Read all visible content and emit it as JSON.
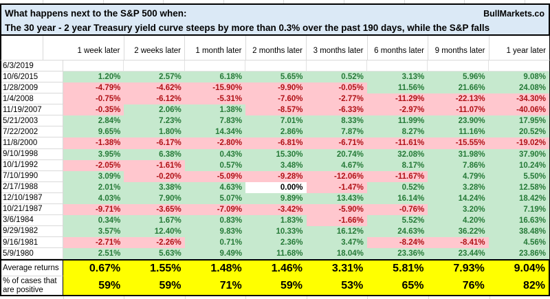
{
  "header": {
    "title_line1": "What happens next to the S&P 500 when:",
    "title_line2": "The 30 year - 2 year Treasury yield curve steeps by more than 0.3% over the past 190 days, while the S&P falls",
    "brand": "BullMarkets.co"
  },
  "colors": {
    "title_bg": "#dbe9f6",
    "positive_fill": "#c6e9ce",
    "negative_fill": "#ffc7ce",
    "positive_text": "#267a38",
    "negative_text": "#b01116",
    "footer_bg": "#ffff00",
    "gridline": "#d9d9d9"
  },
  "table": {
    "columns": [
      "1 week later",
      "2 weeks later",
      "1 month later",
      "2 months later",
      "3 months later",
      "6 months later",
      "9 months later",
      "1 year later"
    ],
    "rows": [
      {
        "date": "6/3/2019",
        "values": [
          "",
          "",
          "",
          "",
          "",
          "",
          "",
          ""
        ]
      },
      {
        "date": "10/6/2015",
        "values": [
          "1.20%",
          "2.57%",
          "6.18%",
          "5.65%",
          "0.52%",
          "3.13%",
          "5.96%",
          "9.08%"
        ]
      },
      {
        "date": "1/28/2009",
        "values": [
          "-4.79%",
          "-4.62%",
          "-15.90%",
          "-9.90%",
          "-0.05%",
          "11.56%",
          "21.66%",
          "24.08%"
        ]
      },
      {
        "date": "1/4/2008",
        "values": [
          "-0.75%",
          "-6.12%",
          "-5.31%",
          "-7.60%",
          "-2.77%",
          "-11.29%",
          "-22.13%",
          "-34.30%"
        ]
      },
      {
        "date": "11/19/2007",
        "values": [
          "-0.35%",
          "2.06%",
          "1.38%",
          "-8.57%",
          "-6.33%",
          "-2.97%",
          "-11.07%",
          "-40.06%"
        ]
      },
      {
        "date": "5/21/2003",
        "values": [
          "2.84%",
          "7.23%",
          "7.83%",
          "7.01%",
          "8.33%",
          "11.99%",
          "23.90%",
          "17.95%"
        ]
      },
      {
        "date": "7/22/2002",
        "values": [
          "9.65%",
          "1.80%",
          "14.34%",
          "2.86%",
          "7.87%",
          "8.27%",
          "11.16%",
          "20.52%"
        ]
      },
      {
        "date": "11/8/2000",
        "values": [
          "-1.38%",
          "-6.17%",
          "-2.80%",
          "-6.81%",
          "-6.71%",
          "-11.61%",
          "-15.55%",
          "-19.02%"
        ]
      },
      {
        "date": "9/10/1998",
        "values": [
          "3.95%",
          "6.38%",
          "0.43%",
          "15.30%",
          "20.74%",
          "32.08%",
          "31.98%",
          "37.90%"
        ]
      },
      {
        "date": "10/1/1992",
        "values": [
          "-2.05%",
          "-1.61%",
          "0.57%",
          "3.48%",
          "4.67%",
          "8.17%",
          "7.86%",
          "10.24%"
        ]
      },
      {
        "date": "7/10/1990",
        "values": [
          "3.09%",
          "-0.20%",
          "-5.09%",
          "-9.28%",
          "-12.06%",
          "-11.67%",
          "4.79%",
          "5.50%"
        ]
      },
      {
        "date": "2/17/1988",
        "values": [
          "2.01%",
          "3.38%",
          "4.63%",
          "0.00%",
          "-1.47%",
          "0.52%",
          "3.28%",
          "12.58%"
        ]
      },
      {
        "date": "12/10/1987",
        "values": [
          "4.03%",
          "7.90%",
          "5.07%",
          "9.89%",
          "13.43%",
          "16.14%",
          "14.24%",
          "18.42%"
        ]
      },
      {
        "date": "10/21/1987",
        "values": [
          "-9.71%",
          "-3.65%",
          "-7.09%",
          "-3.42%",
          "-5.90%",
          "-0.76%",
          "3.20%",
          "7.19%"
        ]
      },
      {
        "date": "3/6/1984",
        "values": [
          "0.34%",
          "1.67%",
          "0.83%",
          "1.83%",
          "-1.66%",
          "5.52%",
          "4.20%",
          "16.63%"
        ]
      },
      {
        "date": "9/29/1982",
        "values": [
          "3.57%",
          "12.40%",
          "9.83%",
          "10.33%",
          "16.12%",
          "24.63%",
          "36.22%",
          "38.48%"
        ]
      },
      {
        "date": "9/16/1981",
        "values": [
          "-2.71%",
          "-2.26%",
          "0.71%",
          "2.36%",
          "3.47%",
          "-8.24%",
          "-8.41%",
          "4.56%"
        ]
      },
      {
        "date": "5/9/1980",
        "values": [
          "2.51%",
          "5.63%",
          "9.49%",
          "11.68%",
          "18.04%",
          "23.36%",
          "23.44%",
          "23.86%"
        ]
      }
    ]
  },
  "footer": {
    "average_label": "Average returns",
    "average_values": [
      "0.67%",
      "1.55%",
      "1.48%",
      "1.46%",
      "3.31%",
      "5.81%",
      "7.93%",
      "9.04%"
    ],
    "percent_positive_label": "% of cases that are positive",
    "percent_positive_values": [
      "59%",
      "59%",
      "71%",
      "59%",
      "53%",
      "65%",
      "76%",
      "82%"
    ]
  }
}
